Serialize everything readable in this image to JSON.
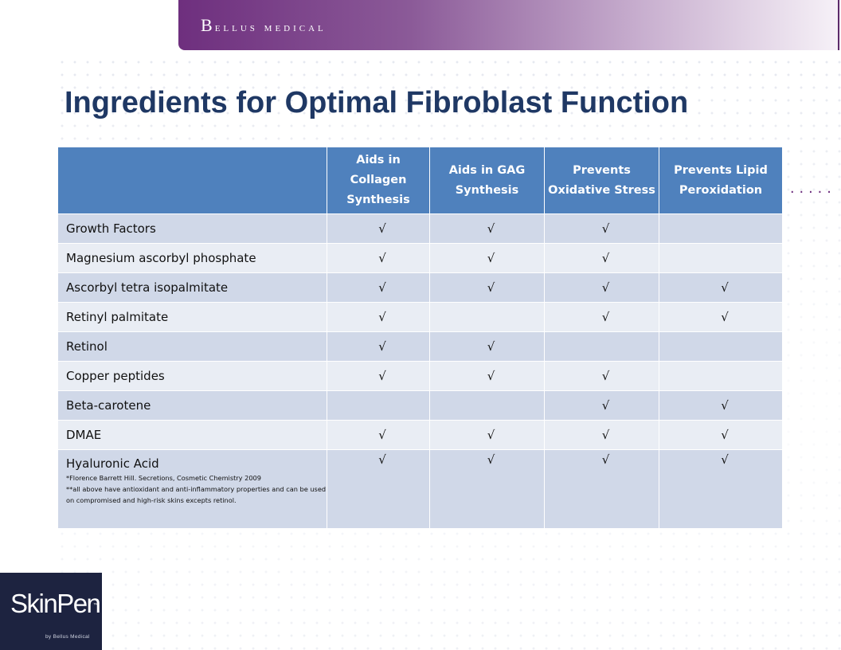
{
  "header": {
    "brand_initial": "B",
    "brand_rest": "ellus medical",
    "brand_color": "#6e2f7e"
  },
  "slide": {
    "title": "Ingredients for Optimal Fibroblast Function",
    "title_color": "#1f3864",
    "side_dots": "....."
  },
  "table": {
    "header_color": "#4f81bd",
    "columns": [
      "",
      "Aids in Collagen Synthesis",
      "Aids in GAG Synthesis",
      "Prevents Oxidative Stress",
      "Prevents Lipid Peroxidation"
    ],
    "rows": [
      {
        "name": "Growth Factors",
        "c1": "√",
        "c2": "√",
        "c3": "√",
        "c4": ""
      },
      {
        "name": "Magnesium ascorbyl phosphate",
        "c1": "√",
        "c2": "√",
        "c3": "√",
        "c4": ""
      },
      {
        "name": "Ascorbyl tetra isopalmitate",
        "c1": "√",
        "c2": "√",
        "c3": "√",
        "c4": "√"
      },
      {
        "name": "Retinyl palmitate",
        "c1": "√",
        "c2": "",
        "c3": "√",
        "c4": "√"
      },
      {
        "name": "Retinol",
        "c1": "√",
        "c2": "√",
        "c3": "",
        "c4": ""
      },
      {
        "name": "Copper peptides",
        "c1": "√",
        "c2": "√",
        "c3": "√",
        "c4": ""
      },
      {
        "name": "Beta-carotene",
        "c1": "",
        "c2": "",
        "c3": "√",
        "c4": "√"
      },
      {
        "name": "DMAE",
        "c1": "√",
        "c2": "√",
        "c3": "√",
        "c4": "√"
      },
      {
        "name": "Hyaluronic Acid",
        "c1": "√",
        "c2": "√",
        "c3": "√",
        "c4": "√"
      }
    ],
    "footnote_1": "*Florence Barrett Hill. Secretions, Cosmetic Chemistry 2009",
    "footnote_2": "**all above have antioxidant and anti-inflammatory properties and can be used on compromised and high-risk skins excepts retinol."
  },
  "logo": {
    "name": "SkinPen",
    "tm": "™",
    "sub": "by Bellus Medical"
  }
}
